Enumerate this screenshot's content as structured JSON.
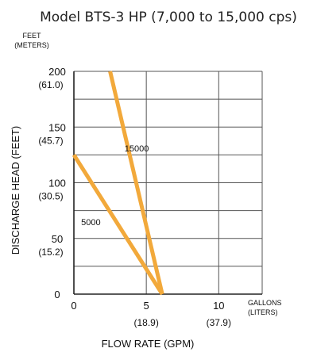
{
  "chart_data": {
    "type": "line",
    "title": "Model BTS-3 HP (7,000 to 15,000 cps)",
    "xlabel": "FLOW RATE (GPM)",
    "ylabel": "DISCHARGE HEAD (FEET)",
    "x_unit_label": [
      "GALLONS",
      "(LITERS)"
    ],
    "y_unit_label": [
      "FEET",
      "(METERS)"
    ],
    "xlim": [
      0,
      13
    ],
    "ylim": [
      0,
      200
    ],
    "grid": true,
    "x_ticks": [
      {
        "value": 0,
        "label": "0",
        "sublabel": ""
      },
      {
        "value": 5,
        "label": "5",
        "sublabel": "(18.9)"
      },
      {
        "value": 10,
        "label": "10",
        "sublabel": "(37.9)"
      }
    ],
    "y_ticks": [
      {
        "value": 0,
        "label": "0",
        "sublabel": ""
      },
      {
        "value": 50,
        "label": "50",
        "sublabel": "(15.2)"
      },
      {
        "value": 100,
        "label": "100",
        "sublabel": "(30.5)"
      },
      {
        "value": 150,
        "label": "150",
        "sublabel": "(45.7)"
      },
      {
        "value": 200,
        "label": "200",
        "sublabel": "(61.0)"
      }
    ],
    "series": [
      {
        "name": "15000",
        "color": "#f2a93b",
        "x": [
          2.5,
          6.1
        ],
        "y": [
          200,
          0
        ],
        "label_at": [
          3.5,
          128
        ]
      },
      {
        "name": "5000",
        "color": "#f2a93b",
        "x": [
          0,
          6.1
        ],
        "y": [
          125,
          0
        ],
        "label_at": [
          0.5,
          62
        ]
      }
    ]
  }
}
